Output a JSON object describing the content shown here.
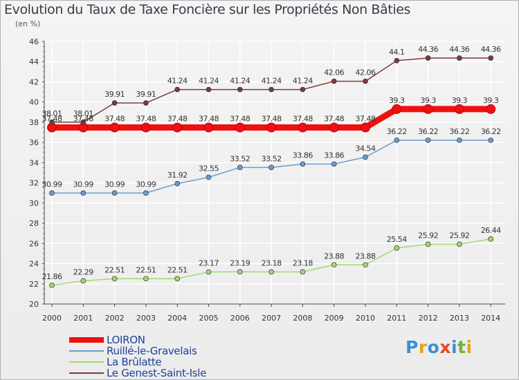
{
  "chart_data": {
    "type": "line",
    "title": "Evolution du Taux de Taxe Foncière sur les Propriétés Non Bâties",
    "ylabel": "(en %)",
    "xlabel": "",
    "ylim": [
      20,
      46
    ],
    "yticks": [
      "20",
      "22",
      "24",
      "26",
      "28",
      "30",
      "32",
      "34",
      "36",
      "38",
      "40",
      "42",
      "44",
      "46"
    ],
    "categories": [
      "2000",
      "2001",
      "2002",
      "2003",
      "2004",
      "2005",
      "2006",
      "2007",
      "2008",
      "2009",
      "2010",
      "2011",
      "2012",
      "2013",
      "2014"
    ],
    "series": [
      {
        "name": "LOIRON",
        "color": "#ee1111",
        "values": [
          37.48,
          37.48,
          37.48,
          37.48,
          37.48,
          37.48,
          37.48,
          37.48,
          37.48,
          37.48,
          37.48,
          39.3,
          39.3,
          39.3,
          39.3
        ],
        "labels": [
          "37.48",
          "37.48",
          "37.48",
          "37.48",
          "37.48",
          "37.48",
          "37.48",
          "37.48",
          "37.48",
          "37.48",
          "37.48",
          "39.3",
          "39.3",
          "39.3",
          "39.3"
        ]
      },
      {
        "name": "Ruillé-le-Gravelais",
        "color": "#6a9ccf",
        "values": [
          30.99,
          30.99,
          30.99,
          30.99,
          31.92,
          32.55,
          33.52,
          33.52,
          33.86,
          33.86,
          34.54,
          36.22,
          36.22,
          36.22,
          36.22
        ],
        "labels": [
          "30.99",
          "30.99",
          "30.99",
          "30.99",
          "31.92",
          "32.55",
          "33.52",
          "33.52",
          "33.86",
          "33.86",
          "34.54",
          "36.22",
          "36.22",
          "36.22",
          "36.22"
        ]
      },
      {
        "name": "La Brûlatte",
        "color": "#a4d86e",
        "values": [
          21.86,
          22.29,
          22.51,
          22.51,
          22.51,
          23.17,
          23.19,
          23.18,
          23.18,
          23.88,
          23.88,
          25.54,
          25.92,
          25.92,
          26.44
        ],
        "labels": [
          "21.86",
          "22.29",
          "22.51",
          "22.51",
          "22.51",
          "23.17",
          "23.19",
          "23.18",
          "23.18",
          "23.88",
          "23.88",
          "25.54",
          "25.92",
          "25.92",
          "26.44"
        ]
      },
      {
        "name": "Le Genest-Saint-Isle",
        "color": "#7a3b3b",
        "values": [
          38.01,
          38.01,
          39.91,
          39.91,
          41.24,
          41.24,
          41.24,
          41.24,
          41.24,
          42.06,
          42.06,
          44.1,
          44.36,
          44.36,
          44.36
        ],
        "labels": [
          "38.01",
          "38.01",
          "39.91",
          "39.91",
          "41.24",
          "41.24",
          "41.24",
          "41.24",
          "41.24",
          "42.06",
          "42.06",
          "44.1",
          "44.36",
          "44.36",
          "44.36"
        ]
      }
    ],
    "legend_position": "bottom-left"
  },
  "logo": {
    "text": "Proxiti",
    "colors": [
      "#3a8fd8",
      "#e8a020",
      "#3a8fd8",
      "#e34a20",
      "#3a8fd8",
      "#6ab82d",
      "#e8a020"
    ]
  }
}
